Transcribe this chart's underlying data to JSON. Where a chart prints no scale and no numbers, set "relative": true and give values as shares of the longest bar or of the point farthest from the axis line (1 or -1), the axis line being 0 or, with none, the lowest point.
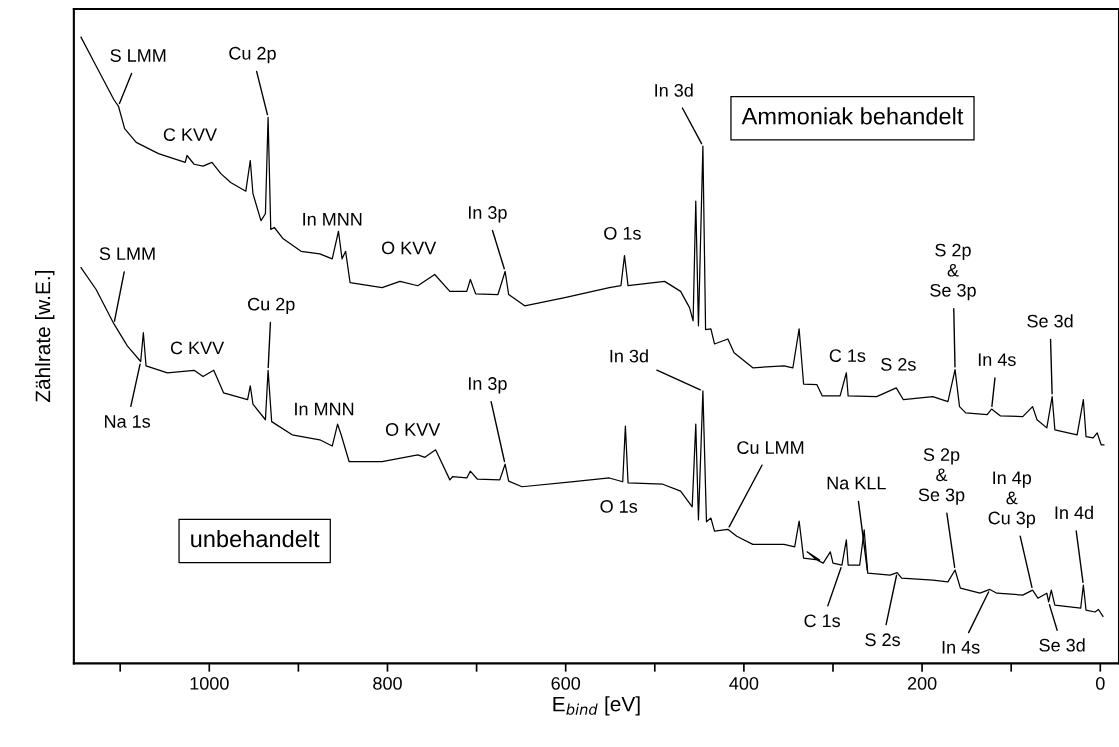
{
  "chart_data": {
    "type": "line",
    "relative": true,
    "xlabel": "E$_{bind}$ [eV]",
    "ylabel": "Zählrate [w.E.]",
    "xlim": [
      1152,
      -21
    ],
    "xticks": [
      0,
      {
        "value": 100,
        "label": null
      },
      200,
      {
        "value": 300,
        "label": null
      },
      400,
      {
        "value": 500,
        "label": null
      },
      600,
      {
        "value": 700,
        "label": null
      },
      800,
      {
        "value": 900,
        "label": null
      },
      1000,
      {
        "value": 1100,
        "label": null
      }
    ],
    "tick_labels": "x",
    "grid": false,
    "marker": "none",
    "line_style": "solid",
    "series": [
      {
        "name": "Ammoniak behandelt",
        "color": "#000000",
        "x": [
          1144,
          1127,
          1107,
          1102,
          1095,
          1082,
          1057,
          1027,
          1025,
          1017,
          1007,
          997,
          987,
          976,
          959,
          954,
          951,
          942,
          937,
          934,
          931,
          927,
          917,
          897,
          876,
          862,
          855,
          851,
          847,
          842,
          806,
          786,
          766,
          747,
          730,
          727,
          711,
          707,
          701,
          676,
          668,
          664,
          646,
          601,
          551,
          538,
          534,
          530,
          489,
          471,
          461,
          457,
          454,
          451,
          446,
          443,
          437,
          433,
          418,
          411,
          390,
          355,
          345,
          338,
          333,
          318,
          312,
          292,
          285,
          283,
          251,
          229,
          221,
          188,
          171,
          163,
          158,
          151,
          127,
          122,
          112,
          87,
          76,
          71,
          60,
          54,
          51,
          26,
          19,
          16,
          8,
          3.5,
          -1,
          -4
        ],
        "values": [
          1.0,
          0.954,
          0.9,
          0.89,
          0.854,
          0.832,
          0.814,
          0.8,
          0.811,
          0.797,
          0.794,
          0.8,
          0.782,
          0.768,
          0.754,
          0.803,
          0.75,
          0.707,
          0.718,
          0.872,
          0.693,
          0.696,
          0.678,
          0.658,
          0.654,
          0.646,
          0.69,
          0.646,
          0.658,
          0.608,
          0.6,
          0.61,
          0.603,
          0.621,
          0.594,
          0.594,
          0.594,
          0.613,
          0.59,
          0.589,
          0.626,
          0.589,
          0.571,
          0.584,
          0.6,
          0.603,
          0.651,
          0.603,
          0.61,
          0.594,
          0.568,
          0.547,
          0.738,
          0.539,
          0.826,
          0.533,
          0.534,
          0.51,
          0.518,
          0.496,
          0.472,
          0.475,
          0.472,
          0.534,
          0.446,
          0.445,
          0.427,
          0.427,
          0.464,
          0.427,
          0.426,
          0.44,
          0.421,
          0.426,
          0.418,
          0.469,
          0.41,
          0.4,
          0.397,
          0.406,
          0.395,
          0.394,
          0.41,
          0.389,
          0.376,
          0.426,
          0.373,
          0.365,
          0.421,
          0.362,
          0.36,
          0.368,
          0.349,
          0.349
        ]
      },
      {
        "name": "unbehandelt",
        "color": "#000000",
        "x": [
          1144,
          1127,
          1107,
          1092,
          1077,
          1074,
          1071,
          1047,
          1017,
          1007,
          995,
          984,
          957,
          954,
          951,
          937,
          934,
          930,
          907,
          876,
          862,
          856,
          852,
          843,
          806,
          766,
          758,
          746,
          730,
          727,
          711,
          707,
          699,
          674,
          668,
          664,
          649,
          591,
          551,
          536,
          533,
          530,
          491,
          471,
          458,
          454,
          451,
          446,
          442,
          437,
          433,
          418,
          408,
          390,
          355,
          343,
          338,
          333,
          315,
          329,
          318,
          311,
          303,
          300,
          290,
          285,
          283,
          270,
          265,
          261,
          236,
          228,
          223,
          188,
          171,
          163,
          157,
          135,
          124,
          116,
          87,
          76,
          70,
          60,
          58,
          55,
          51,
          22,
          19,
          16,
          6,
          2,
          -3
        ],
        "values": [
          0.632,
          0.597,
          0.542,
          0.507,
          0.482,
          0.528,
          0.475,
          0.464,
          0.468,
          0.458,
          0.468,
          0.432,
          0.421,
          0.443,
          0.414,
          0.389,
          0.468,
          0.386,
          0.365,
          0.357,
          0.347,
          0.382,
          0.365,
          0.322,
          0.322,
          0.333,
          0.329,
          0.341,
          0.293,
          0.298,
          0.296,
          0.307,
          0.294,
          0.293,
          0.318,
          0.291,
          0.282,
          0.29,
          0.296,
          0.29,
          0.379,
          0.288,
          0.286,
          0.275,
          0.25,
          0.382,
          0.229,
          0.435,
          0.226,
          0.232,
          0.211,
          0.214,
          0.203,
          0.19,
          0.19,
          0.186,
          0.227,
          0.168,
          0.165,
          0.178,
          0.165,
          0.16,
          0.178,
          0.16,
          0.157,
          0.197,
          0.157,
          0.157,
          0.213,
          0.144,
          0.141,
          0.145,
          0.136,
          0.133,
          0.13,
          0.149,
          0.12,
          0.112,
          0.118,
          0.112,
          0.109,
          0.117,
          0.104,
          0.112,
          0.098,
          0.117,
          0.093,
          0.088,
          0.125,
          0.085,
          0.082,
          0.086,
          0.075
        ]
      }
    ],
    "annotations": [
      {
        "text": "S LMM",
        "x": 1102,
        "y": 0.89
      },
      {
        "text": "Cu 2p",
        "x": 934,
        "y": 0.872
      },
      {
        "text": "C KVV",
        "x": 1017,
        "y": 0.797
      },
      {
        "text": "In MNN",
        "x": 855,
        "y": 0.69
      },
      {
        "text": "O KVV",
        "x": 747,
        "y": 0.621
      },
      {
        "text": "In 3p",
        "x": 668,
        "y": 0.626
      },
      {
        "text": "O 1s",
        "x": 534,
        "y": 0.651
      },
      {
        "text": "In 3d",
        "x": 446,
        "y": 0.826
      },
      {
        "text": "S 2p\n&\nSe 3p",
        "x": 163,
        "y": 0.469
      },
      {
        "text": "C 1s",
        "x": 285,
        "y": 0.464
      },
      {
        "text": "S 2s",
        "x": 229,
        "y": 0.44
      },
      {
        "text": "In 4s",
        "x": 122,
        "y": 0.406
      },
      {
        "text": "Se 3d",
        "x": 54,
        "y": 0.426
      },
      {
        "text": "S LMM",
        "x": 1107,
        "y": 0.542
      },
      {
        "text": "Cu 2p",
        "x": 934,
        "y": 0.468
      },
      {
        "text": "C KVV",
        "x": 995,
        "y": 0.468
      },
      {
        "text": "Na 1s",
        "x": 1077,
        "y": 0.482
      },
      {
        "text": "In MNN",
        "x": 856,
        "y": 0.382
      },
      {
        "text": "O KVV",
        "x": 746,
        "y": 0.341
      },
      {
        "text": "In 3p",
        "x": 668,
        "y": 0.318
      },
      {
        "text": "In 3d",
        "x": 446,
        "y": 0.435
      },
      {
        "text": "O 1s",
        "x": 530,
        "y": 0.288
      },
      {
        "text": "Cu LMM",
        "x": 418,
        "y": 0.214
      },
      {
        "text": "Na KLL",
        "x": 261,
        "y": 0.144
      },
      {
        "text": "S 2p\n&\nSe 3p",
        "x": 163,
        "y": 0.149
      },
      {
        "text": "In 4p\n&\nCu 3p",
        "x": 76,
        "y": 0.117
      },
      {
        "text": "In 4d",
        "x": 19,
        "y": 0.125
      },
      {
        "text": "C 1s",
        "x": 290,
        "y": 0.157
      },
      {
        "text": "S 2s",
        "x": 228,
        "y": 0.145
      },
      {
        "text": "In 4s",
        "x": 124,
        "y": 0.118
      },
      {
        "text": "Se 3d",
        "x": 58,
        "y": 0.098
      }
    ]
  }
}
